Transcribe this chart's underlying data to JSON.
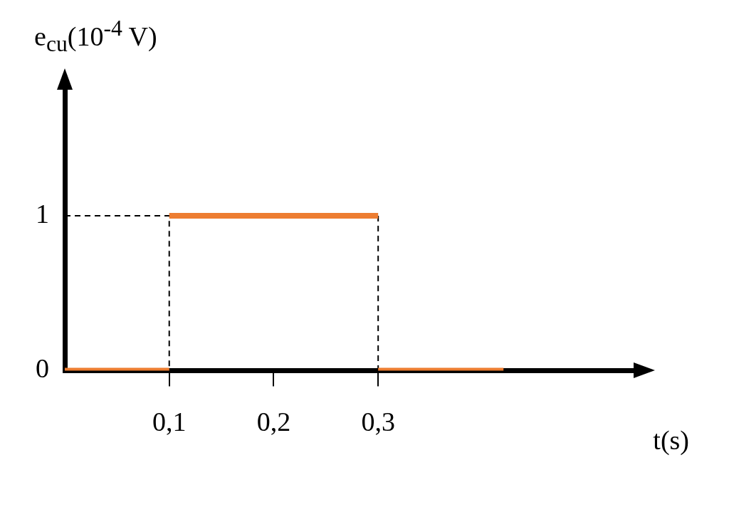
{
  "chart_data": {
    "type": "line",
    "xlabel": "t(s)",
    "ylabel": "e$_{cu}$(10$^{-4}$ V)",
    "xlim": [
      0,
      0.55
    ],
    "ylim": [
      0,
      1.85
    ],
    "xticks": [
      {
        "value": 0.1,
        "label": "0,1"
      },
      {
        "value": 0.2,
        "label": "0,2"
      },
      {
        "value": 0.3,
        "label": "0,3"
      }
    ],
    "yticks": [
      0,
      1
    ],
    "grid": false,
    "legend": false,
    "marker": "none",
    "series": [
      {
        "color": "#ed7d31",
        "x": [
          0,
          0.1
        ],
        "values": [
          0,
          0
        ]
      },
      {
        "color": "#ed7d31",
        "x": [
          0.1,
          0.3
        ],
        "values": [
          1,
          1
        ]
      },
      {
        "color": "#ed7d31",
        "x": [
          0.3,
          0.42
        ],
        "values": [
          0,
          0
        ]
      },
      {
        "color": "#000000",
        "line_style": "dashed",
        "x": [
          0,
          0.1,
          0.1,
          0.2,
          0.3,
          0.3
        ],
        "values": [
          1,
          1,
          0,
          null,
          1,
          0
        ]
      }
    ]
  }
}
